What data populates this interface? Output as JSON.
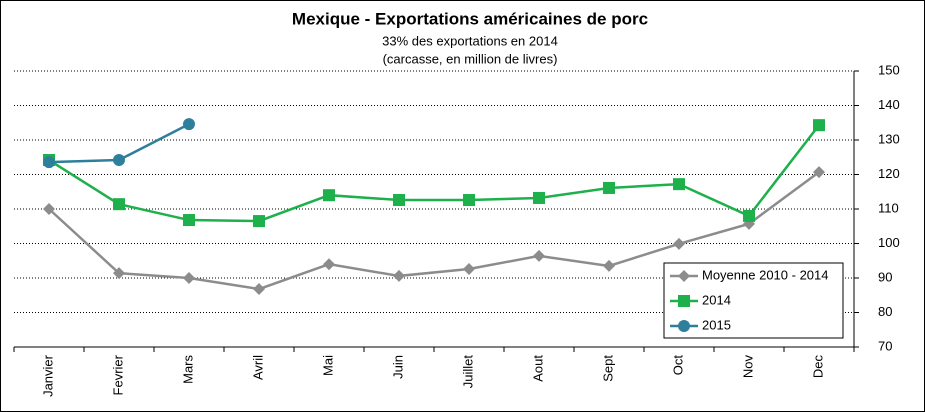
{
  "chart_data": {
    "type": "line",
    "title": "Mexique - Exportations américaines de porc",
    "subtitle": [
      "33% des exportations en 2014",
      "(carcasse, en million de livres)"
    ],
    "categories": [
      "Janvier",
      "Fevrier",
      "Mars",
      "Avril",
      "Mai",
      "Juin",
      "Juillet",
      "Aout",
      "Sept",
      "Oct",
      "Nov",
      "Dec"
    ],
    "series": [
      {
        "name": "Moyenne 2010 - 2014",
        "color": "#8c8c8c",
        "marker": "diamond",
        "values": [
          110,
          91.4,
          90,
          86.8,
          94,
          90.6,
          92.6,
          96.4,
          93.5,
          99.9,
          105.7,
          120.7
        ]
      },
      {
        "name": "2014",
        "color": "#1db04b",
        "marker": "square",
        "values": [
          124.2,
          111.4,
          106.8,
          106.5,
          114,
          112.6,
          112.6,
          113.2,
          116.1,
          117.2,
          108,
          134.3
        ]
      },
      {
        "name": "2015",
        "color": "#2e7f9b",
        "marker": "circle",
        "values": [
          123.6,
          124.2,
          134.6,
          null,
          null,
          null,
          null,
          null,
          null,
          null,
          null,
          null
        ]
      }
    ],
    "ylim": [
      70,
      150
    ],
    "yticks": [
      70,
      80,
      90,
      100,
      110,
      120,
      130,
      140,
      150
    ],
    "y_axis_side": "right",
    "grid": true,
    "legend": "lower right"
  }
}
